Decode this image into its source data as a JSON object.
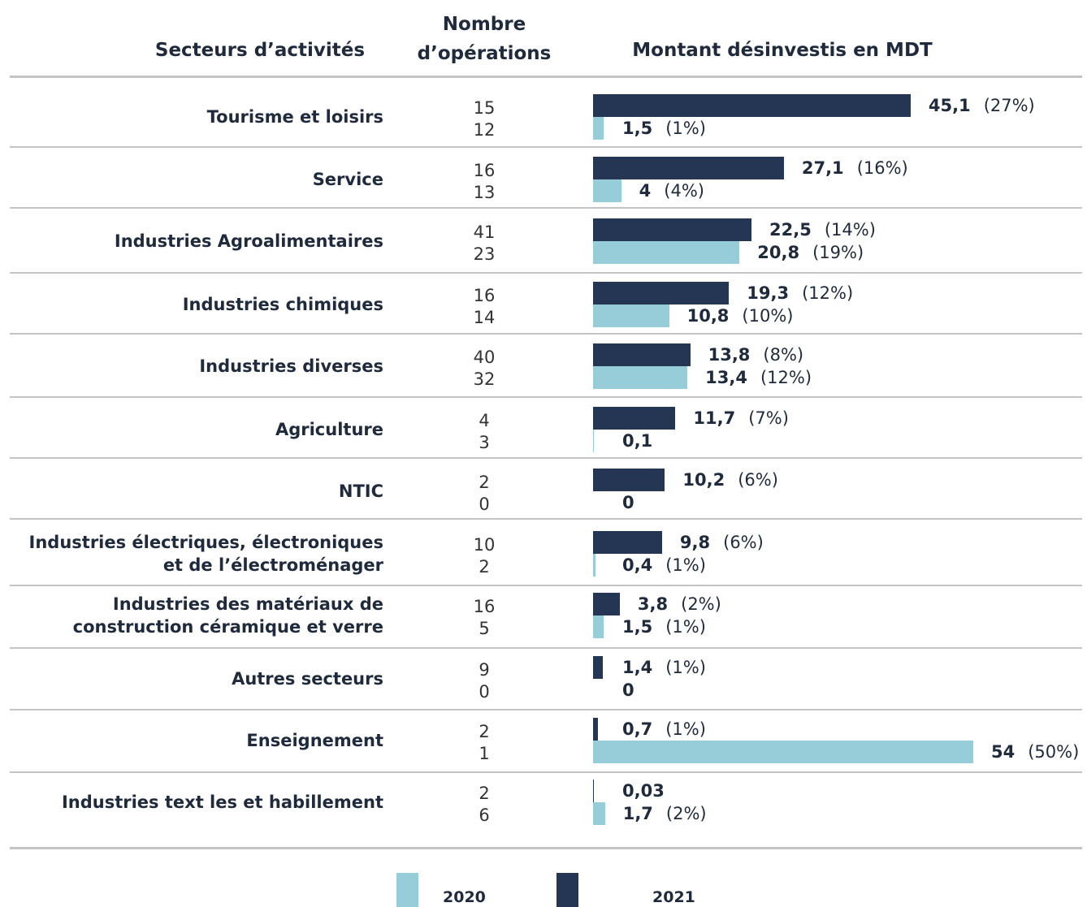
{
  "chart_data": {
    "type": "bar",
    "header": {
      "sector": "Secteurs d’activités",
      "count": "Nombre\nd’opérations",
      "amount": "Montant désinvestis en MDT"
    },
    "categories": [
      "Tourisme et loisirs",
      "Service",
      "Industries Agroalimentaires",
      "Industries chimiques",
      "Industries diverses",
      "Agriculture",
      "NTIC",
      "Industries électriques, électroniques\net de l’électroménager",
      "Industries des matériaux de\nconstruction céramique et verre",
      "Autres secteurs",
      "Enseignement",
      "Industries text les et habillement"
    ],
    "series": [
      {
        "name": "2021",
        "color": "#253654",
        "values": [
          45.1,
          27.1,
          22.5,
          19.3,
          13.8,
          11.7,
          10.2,
          9.8,
          3.8,
          1.4,
          0.7,
          0.03
        ],
        "value_labels": [
          "45,1",
          "27,1",
          "22,5",
          "19,3",
          "13,8",
          "11,7",
          "10,2",
          "9,8",
          "3,8",
          "1,4",
          "0,7",
          "0,03"
        ],
        "shares": [
          27,
          16,
          14,
          12,
          8,
          7,
          6,
          6,
          2,
          1,
          1,
          null
        ],
        "share_labels": [
          "(27%)",
          "(16%)",
          "(14%)",
          "(12%)",
          "(8%)",
          "(7%)",
          "(6%)",
          "(6%)",
          "(2%)",
          "(1%)",
          "(1%)",
          null
        ],
        "operations": [
          15,
          16,
          41,
          16,
          40,
          4,
          2,
          10,
          16,
          9,
          2,
          2
        ]
      },
      {
        "name": "2020",
        "color": "#96cdd8",
        "values": [
          1.5,
          4,
          20.8,
          10.8,
          13.4,
          0.1,
          0,
          0.4,
          1.5,
          0,
          54,
          1.7
        ],
        "value_labels": [
          "1,5",
          "4",
          "20,8",
          "10,8",
          "13,4",
          "0,1",
          "0",
          "0,4",
          "1,5",
          "0",
          "54",
          "1,7"
        ],
        "shares": [
          1,
          4,
          19,
          10,
          12,
          null,
          null,
          1,
          1,
          null,
          50,
          2
        ],
        "share_labels": [
          "(1%)",
          "(4%)",
          "(19%)",
          "(10%)",
          "(12%)",
          null,
          null,
          "(1%)",
          "(1%)",
          null,
          "(50%)",
          "(2%)"
        ],
        "operations": [
          12,
          13,
          23,
          14,
          32,
          3,
          0,
          2,
          5,
          0,
          1,
          6
        ]
      }
    ]
  }
}
